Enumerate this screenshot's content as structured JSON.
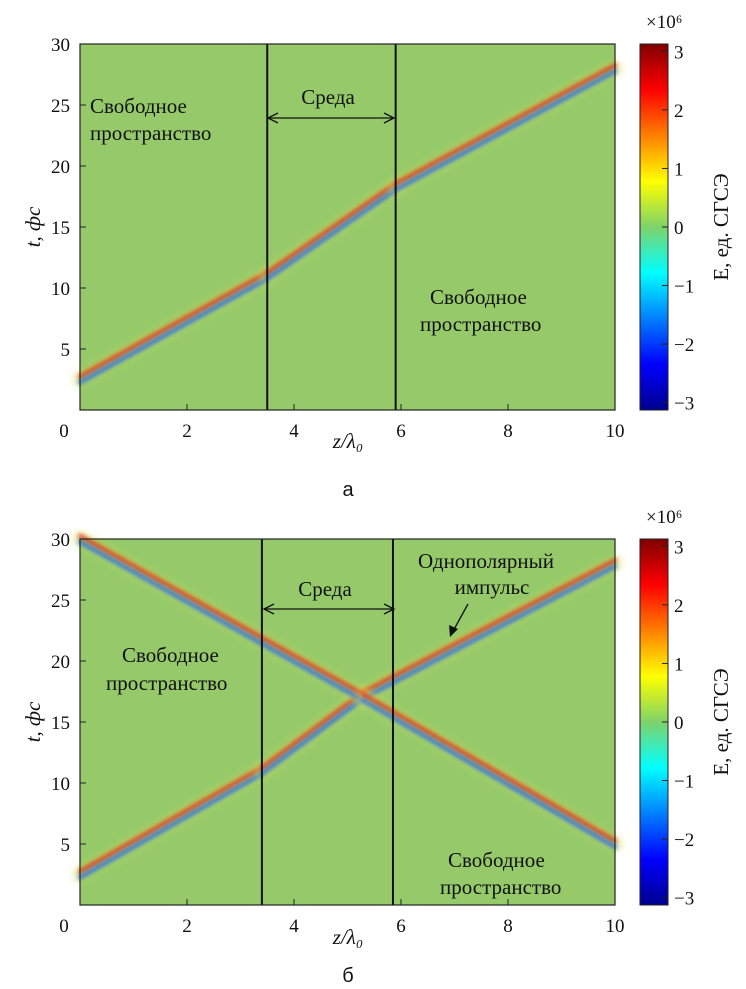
{
  "chart_data": [
    {
      "type": "heatmap",
      "panel_label": "а",
      "xlabel": "z/λ₀",
      "ylabel": "t, фс",
      "xlim": [
        0,
        10
      ],
      "ylim": [
        0,
        30
      ],
      "x_ticks": [
        0,
        2,
        4,
        6,
        8,
        10
      ],
      "y_ticks": [
        5,
        10,
        15,
        20,
        25,
        30
      ],
      "colorbar": {
        "label": "E, ед. СГСЭ",
        "multiplier": "×10⁶",
        "range": [
          -3,
          3
        ],
        "ticks": [
          3,
          2,
          1,
          0,
          -1,
          -2,
          -3
        ]
      },
      "boundaries_z": [
        3.5,
        5.9
      ],
      "annotations": {
        "medium": "Среда",
        "free_space_left": [
          "Свободное",
          "пространство"
        ],
        "free_space_right": [
          "Свободное",
          "пространство"
        ]
      },
      "pulses": [
        {
          "z": [
            0,
            3.5
          ],
          "t": [
            2.5,
            11.0
          ]
        },
        {
          "z": [
            3.5,
            5.9
          ],
          "t": [
            11.0,
            18.3
          ]
        },
        {
          "z": [
            5.9,
            10
          ],
          "t": [
            18.3,
            28.0
          ]
        }
      ]
    },
    {
      "type": "heatmap",
      "panel_label": "б",
      "xlabel": "z/λ₀",
      "ylabel": "t, фс",
      "xlim": [
        0,
        10
      ],
      "ylim": [
        0,
        30
      ],
      "x_ticks": [
        0,
        2,
        4,
        6,
        8,
        10
      ],
      "y_ticks": [
        5,
        10,
        15,
        20,
        25,
        30
      ],
      "colorbar": {
        "label": "E, ед. СГСЭ",
        "multiplier": "×10⁶",
        "range": [
          -3,
          3
        ],
        "ticks": [
          3,
          2,
          1,
          0,
          -1,
          -2,
          -3
        ]
      },
      "boundaries_z": [
        3.4,
        5.85
      ],
      "annotations": {
        "medium": "Среда",
        "free_space_left": [
          "Свободное",
          "пространство"
        ],
        "free_space_right": [
          "Свободное",
          "пространство"
        ],
        "unipolar": [
          "Однополярный",
          "импульс"
        ]
      },
      "pulses": [
        {
          "z": [
            0,
            3.4
          ],
          "t": [
            2.5,
            11.0
          ]
        },
        {
          "z": [
            3.4,
            5.3
          ],
          "t": [
            11.0,
            17.2
          ]
        },
        {
          "z": [
            5.3,
            10
          ],
          "t": [
            17.2,
            28.0
          ]
        },
        {
          "z": [
            0,
            5.3
          ],
          "t": [
            30.0,
            17.0
          ]
        },
        {
          "z": [
            5.3,
            10
          ],
          "t": [
            17.0,
            5.0
          ]
        }
      ]
    }
  ]
}
